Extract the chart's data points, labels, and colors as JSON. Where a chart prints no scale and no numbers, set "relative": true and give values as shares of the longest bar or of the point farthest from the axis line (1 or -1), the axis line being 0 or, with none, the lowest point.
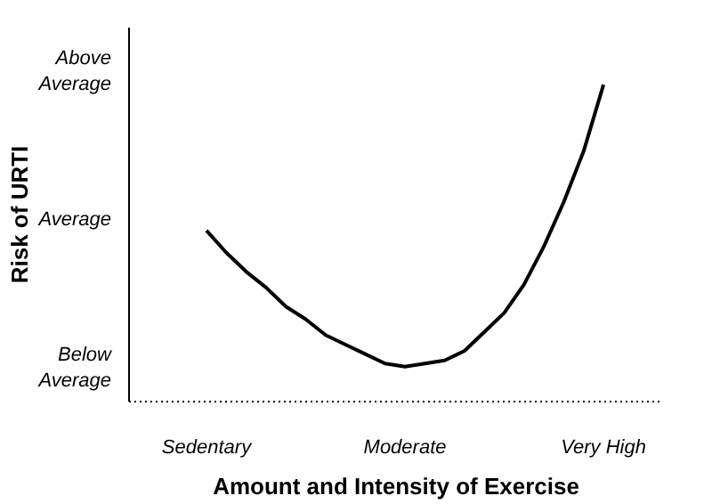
{
  "chart_data": {
    "type": "line",
    "xlabel": "Amount and Intensity of Exercise",
    "relative": true,
    "categories": [
      "Sedentary",
      null,
      null,
      null,
      null,
      null,
      null,
      null,
      null,
      null,
      "Moderate",
      null,
      null,
      null,
      null,
      null,
      null,
      null,
      null,
      null,
      "Very High"
    ],
    "series": [
      {
        "color": "#000000",
        "values": [
          0.54,
          0.47,
          0.41,
          0.36,
          0.3,
          0.26,
          0.21,
          0.18,
          0.15,
          0.12,
          0.11,
          0.12,
          0.13,
          0.16,
          0.22,
          0.28,
          0.37,
          0.49,
          0.63,
          0.79,
          1.0
        ]
      }
    ],
    "annotations": [
      "Below Average",
      "Average",
      "Above Average",
      "Risk of URTI"
    ],
    "grid": false,
    "line_style": "solid"
  }
}
